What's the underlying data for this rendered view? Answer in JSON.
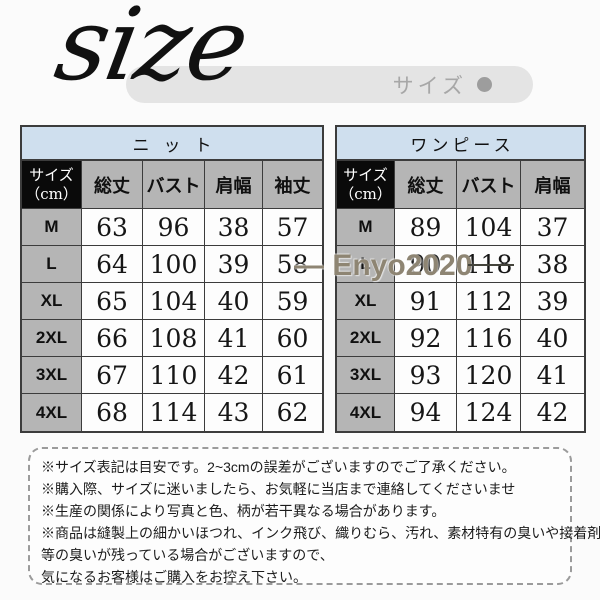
{
  "header": {
    "script_title": "size",
    "pill_label": "サイズ"
  },
  "tables": [
    {
      "title": "ニット",
      "size_header": "サイズ",
      "size_header_unit": "（cm）",
      "columns": [
        "総丈",
        "バスト",
        "肩幅",
        "袖丈"
      ],
      "rows": [
        {
          "size": "M",
          "values": [
            "63",
            "96",
            "38",
            "57"
          ]
        },
        {
          "size": "L",
          "values": [
            "64",
            "100",
            "39",
            "58"
          ]
        },
        {
          "size": "XL",
          "values": [
            "65",
            "104",
            "40",
            "59"
          ]
        },
        {
          "size": "2XL",
          "values": [
            "66",
            "108",
            "41",
            "60"
          ]
        },
        {
          "size": "3XL",
          "values": [
            "67",
            "110",
            "42",
            "61"
          ]
        },
        {
          "size": "4XL",
          "values": [
            "68",
            "114",
            "43",
            "62"
          ]
        }
      ]
    },
    {
      "title": "ワンピース",
      "size_header": "サイズ",
      "size_header_unit": "（cm）",
      "columns": [
        "総丈",
        "バスト",
        "肩幅"
      ],
      "rows": [
        {
          "size": "M",
          "values": [
            "89",
            "104",
            "37"
          ]
        },
        {
          "size": "L",
          "values": [
            "90",
            "118",
            "38"
          ]
        },
        {
          "size": "XL",
          "values": [
            "91",
            "112",
            "39"
          ]
        },
        {
          "size": "2XL",
          "values": [
            "92",
            "116",
            "40"
          ]
        },
        {
          "size": "3XL",
          "values": [
            "93",
            "120",
            "41"
          ]
        },
        {
          "size": "4XL",
          "values": [
            "94",
            "124",
            "42"
          ]
        }
      ]
    }
  ],
  "watermark": "— Enyo2020",
  "notes": [
    "※サイズ表記は目安です。2~3cmの誤差がございますのでご了承ください。",
    "※購入際、サイズに迷いましたら、お気軽に当店まで連絡してくださいませ",
    "※生産の関係により写真と色、柄が若干異なる場合があります。",
    "※商品は縫製上の細かいほつれ、インク飛び、織りむら、汚れ、素材特有の臭いや接着剤",
    "等の臭いが残っている場合がございますので、",
    "気になるお客様はご購入をお控え下さい。"
  ]
}
